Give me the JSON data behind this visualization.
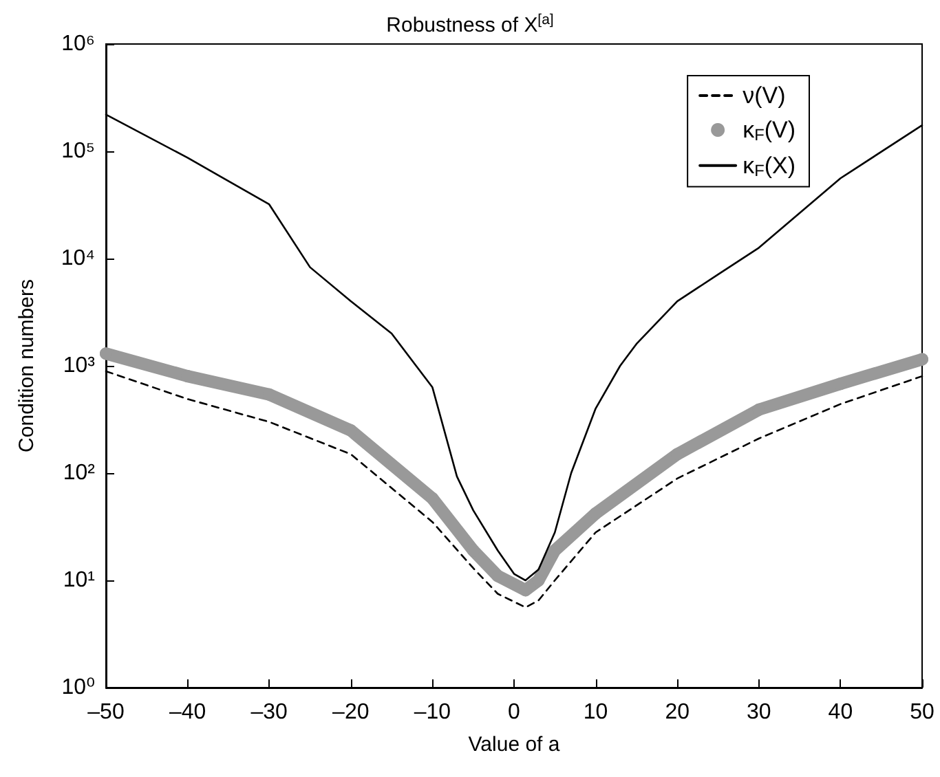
{
  "chart_data": {
    "type": "line",
    "title": "Robustness of X$^{[a]}$",
    "xlabel": "Value of a",
    "ylabel": "Condition numbers",
    "xlim": [
      -50,
      50
    ],
    "xticks": [
      {
        "value": -50,
        "label": "–50"
      },
      {
        "value": -40,
        "label": "–40"
      },
      {
        "value": -30,
        "label": "–30"
      },
      {
        "value": -20,
        "label": "–20"
      },
      {
        "value": -10,
        "label": "–10"
      },
      0,
      10,
      20,
      30,
      40,
      50
    ],
    "ylim": [
      1,
      1000000
    ],
    "yticks": [
      {
        "value": 1,
        "label": "10⁰"
      },
      {
        "value": 10,
        "label": "10¹"
      },
      {
        "value": 100,
        "label": "10²"
      },
      {
        "value": 1000,
        "label": "10³"
      },
      {
        "value": 10000,
        "label": "10⁴"
      },
      {
        "value": 100000,
        "label": "10⁵"
      },
      {
        "value": 1000000,
        "label": "10⁶"
      }
    ],
    "log": "y",
    "grid": false,
    "legend": "top right",
    "series": [
      {
        "name": "ν(V)",
        "color": "#000000",
        "line_style": "dashed",
        "marker": "none",
        "x": [
          -50,
          -40,
          -30,
          -20,
          -10,
          -5,
          -2,
          1.4,
          3,
          5,
          10,
          20,
          30,
          40,
          50
        ],
        "values": [
          890,
          490,
          300,
          150,
          35,
          13,
          7.5,
          5.6,
          6.5,
          10,
          28,
          89,
          210,
          440,
          800
        ]
      },
      {
        "name": "κ$_{F}$(V)",
        "color": "#999999",
        "line_style": "solid",
        "marker": "circle",
        "x": [
          -50,
          -40,
          -30,
          -20,
          -10,
          -5,
          -2,
          1.4,
          3,
          5,
          10,
          20,
          30,
          40,
          50
        ],
        "values": [
          1300,
          800,
          540,
          250,
          58,
          19,
          11,
          8.1,
          10,
          19,
          42,
          150,
          390,
          680,
          1150
        ]
      },
      {
        "name": "κ$_{F}$(X)",
        "color": "#000000",
        "line_style": "solid",
        "marker": "none",
        "x": [
          -50,
          -40,
          -30,
          -25,
          -20,
          -15,
          -12,
          -10,
          -7,
          -5,
          -2,
          0,
          1.4,
          3,
          5,
          7,
          10,
          13,
          15,
          20,
          25,
          30,
          40,
          50
        ],
        "values": [
          220000,
          87000,
          32000,
          8300,
          4000,
          2000,
          1000,
          630,
          93,
          45,
          19,
          11.5,
          10,
          12.6,
          28,
          100,
          400,
          1000,
          1600,
          4000,
          7100,
          12600,
          56000,
          175000
        ]
      }
    ]
  }
}
